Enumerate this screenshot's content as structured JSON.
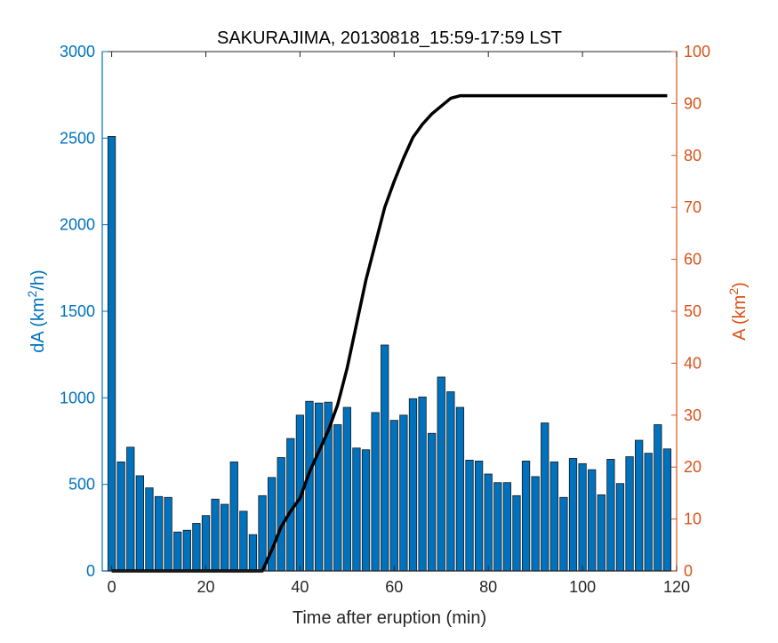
{
  "chart_data": {
    "type": "bar",
    "title": "SAKURAJIMA, 20130818_15:59-17:59 LST",
    "xlabel": "Time after eruption (min)",
    "ylabel_left": "dA (km",
    "ylabel_left_sup": "2",
    "ylabel_left_suffix": "/h)",
    "ylabel_right": "A (km",
    "ylabel_right_sup": "2",
    "ylabel_right_suffix": ")",
    "xlim": [
      -2,
      120
    ],
    "ylim_left": [
      0,
      3000
    ],
    "ylim_right": [
      0,
      100
    ],
    "xticks": [
      0,
      20,
      40,
      60,
      80,
      100,
      120
    ],
    "yticks_left": [
      0,
      500,
      1000,
      1500,
      2000,
      2500,
      3000
    ],
    "yticks_right": [
      0,
      10,
      20,
      30,
      40,
      50,
      60,
      70,
      80,
      90,
      100
    ],
    "grid": false,
    "colors": {
      "bars": "#0072BD",
      "bar_edge": "#1a1a1a",
      "line": "#000000",
      "left_axis": "#0072BD",
      "right_axis": "#D95319",
      "axis": "#262626"
    },
    "series": [
      {
        "type": "bar",
        "axis": "left",
        "x": [
          0,
          2,
          4,
          6,
          8,
          10,
          12,
          14,
          16,
          18,
          20,
          22,
          24,
          26,
          28,
          30,
          32,
          34,
          36,
          38,
          40,
          42,
          44,
          46,
          48,
          50,
          52,
          54,
          56,
          58,
          60,
          62,
          64,
          66,
          68,
          70,
          72,
          74,
          76,
          78,
          80,
          82,
          84,
          86,
          88,
          90,
          92,
          94,
          96,
          98,
          100,
          102,
          104,
          106,
          108,
          110,
          112,
          114,
          116,
          118
        ],
        "values": [
          2510,
          630,
          715,
          550,
          480,
          430,
          425,
          225,
          235,
          275,
          320,
          415,
          385,
          630,
          345,
          210,
          435,
          540,
          655,
          765,
          900,
          980,
          970,
          975,
          845,
          945,
          710,
          700,
          915,
          1305,
          870,
          900,
          995,
          1005,
          795,
          1120,
          1035,
          945,
          640,
          635,
          560,
          510,
          510,
          435,
          635,
          545,
          855,
          630,
          425,
          650,
          620,
          585,
          440,
          645,
          505,
          660,
          755,
          680,
          845,
          705
        ]
      },
      {
        "type": "line",
        "axis": "right",
        "x": [
          0,
          30,
          32,
          34,
          36,
          38,
          40,
          42,
          44,
          46,
          48,
          50,
          52,
          54,
          56,
          58,
          60,
          62,
          64,
          66,
          68,
          70,
          72,
          74,
          76,
          78,
          80,
          90,
          100,
          110,
          118
        ],
        "values": [
          0,
          0,
          0,
          4,
          8.5,
          11.5,
          14,
          19,
          23,
          27,
          32,
          39,
          47.5,
          56,
          63,
          70,
          75,
          79.5,
          83.5,
          86,
          88,
          89.5,
          91,
          91.5,
          91.5,
          91.5,
          91.5,
          91.5,
          91.5,
          91.5,
          91.5
        ]
      }
    ]
  }
}
